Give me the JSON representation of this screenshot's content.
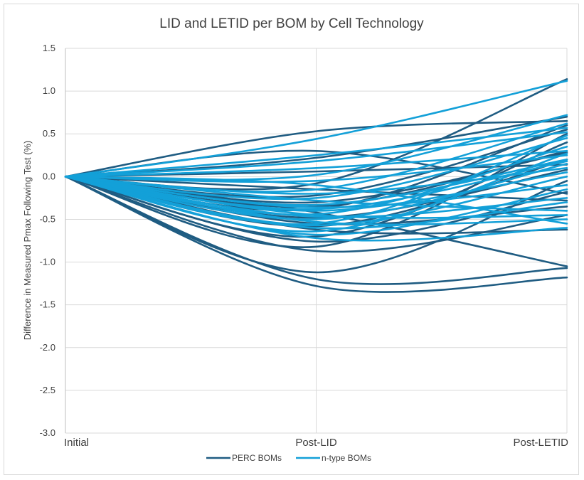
{
  "chart_data": {
    "type": "line",
    "title": "LID and LETID per BOM by Cell Technology",
    "xlabel": "",
    "ylabel": "Difference in Measured Pmax Following Test (%)",
    "categories": [
      "Initial",
      "Post-LID",
      "Post-LETID"
    ],
    "ylim": [
      -3.0,
      1.5
    ],
    "yticks": [
      "1.5",
      "1.0",
      "0.5",
      "0.0",
      "-0.5",
      "-1.0",
      "-1.5",
      "-2.0",
      "-2.5",
      "-3.0"
    ],
    "ytick_values": [
      1.5,
      1.0,
      0.5,
      0.0,
      -0.5,
      -1.0,
      -1.5,
      -2.0,
      -2.5,
      -3.0
    ],
    "grid": true,
    "smooth": true,
    "legend_position": "bottom",
    "colors": {
      "perc": "#1f5c82",
      "ntype": "#13a0d8",
      "grid": "#d9d9d9",
      "axis": "#bfbfbf"
    },
    "legend": [
      {
        "label": "PERC BOMs",
        "group": "perc"
      },
      {
        "label": "n-type BOMs",
        "group": "ntype"
      }
    ],
    "series": [
      {
        "group": "perc",
        "values": [
          0,
          0.53,
          0.65
        ]
      },
      {
        "group": "perc",
        "values": [
          0,
          0.3,
          -0.2
        ]
      },
      {
        "group": "perc",
        "values": [
          0,
          0.22,
          0.7
        ]
      },
      {
        "group": "perc",
        "values": [
          0,
          0.06,
          0.14
        ]
      },
      {
        "group": "perc",
        "values": [
          0,
          -0.08,
          1.14
        ]
      },
      {
        "group": "perc",
        "values": [
          0,
          -0.15,
          -0.28
        ]
      },
      {
        "group": "perc",
        "values": [
          0,
          -0.22,
          0.55
        ]
      },
      {
        "group": "perc",
        "values": [
          0,
          -0.3,
          0.28
        ]
      },
      {
        "group": "perc",
        "values": [
          0,
          -0.38,
          0.6
        ]
      },
      {
        "group": "perc",
        "values": [
          0,
          -0.42,
          -1.05
        ]
      },
      {
        "group": "perc",
        "values": [
          0,
          -0.48,
          0.08
        ]
      },
      {
        "group": "perc",
        "values": [
          0,
          -0.55,
          -0.35
        ]
      },
      {
        "group": "perc",
        "values": [
          0,
          -0.62,
          -0.62
        ]
      },
      {
        "group": "perc",
        "values": [
          0,
          -0.7,
          0.4
        ]
      },
      {
        "group": "perc",
        "values": [
          0,
          -0.76,
          -0.18
        ]
      },
      {
        "group": "perc",
        "values": [
          0,
          -0.82,
          0.5
        ]
      },
      {
        "group": "perc",
        "values": [
          0,
          -0.87,
          -0.45
        ]
      },
      {
        "group": "perc",
        "values": [
          0,
          -1.12,
          -0.05
        ]
      },
      {
        "group": "perc",
        "values": [
          0,
          -1.2,
          -1.07
        ]
      },
      {
        "group": "perc",
        "values": [
          0,
          -1.28,
          -1.18
        ]
      },
      {
        "group": "perc",
        "values": [
          0,
          -0.35,
          0.3
        ]
      },
      {
        "group": "perc",
        "values": [
          0,
          -0.58,
          0.2
        ]
      },
      {
        "group": "ntype",
        "values": [
          0,
          0.44,
          1.12
        ]
      },
      {
        "group": "ntype",
        "values": [
          0,
          0.25,
          0.57
        ]
      },
      {
        "group": "ntype",
        "values": [
          0,
          0.18,
          0.52
        ]
      },
      {
        "group": "ntype",
        "values": [
          0,
          0.1,
          0.3
        ]
      },
      {
        "group": "ntype",
        "values": [
          0,
          0.02,
          0.72
        ]
      },
      {
        "group": "ntype",
        "values": [
          0,
          -0.05,
          0.25
        ]
      },
      {
        "group": "ntype",
        "values": [
          0,
          -0.1,
          -0.55
        ]
      },
      {
        "group": "ntype",
        "values": [
          0,
          -0.15,
          0.62
        ]
      },
      {
        "group": "ntype",
        "values": [
          0,
          -0.2,
          0.1
        ]
      },
      {
        "group": "ntype",
        "values": [
          0,
          -0.25,
          0.45
        ]
      },
      {
        "group": "ntype",
        "values": [
          0,
          -0.28,
          -0.4
        ]
      },
      {
        "group": "ntype",
        "values": [
          0,
          -0.33,
          0.2
        ]
      },
      {
        "group": "ntype",
        "values": [
          0,
          -0.36,
          -0.1
        ]
      },
      {
        "group": "ntype",
        "values": [
          0,
          -0.4,
          0.05
        ]
      },
      {
        "group": "ntype",
        "values": [
          0,
          -0.44,
          0.35
        ]
      },
      {
        "group": "ntype",
        "values": [
          0,
          -0.47,
          -0.25
        ]
      },
      {
        "group": "ntype",
        "values": [
          0,
          -0.5,
          0.15
        ]
      },
      {
        "group": "ntype",
        "values": [
          0,
          -0.53,
          -0.5
        ]
      },
      {
        "group": "ntype",
        "values": [
          0,
          -0.57,
          0.0
        ]
      },
      {
        "group": "ntype",
        "values": [
          0,
          -0.6,
          -0.3
        ]
      },
      {
        "group": "ntype",
        "values": [
          0,
          -0.64,
          0.27
        ]
      },
      {
        "group": "ntype",
        "values": [
          0,
          -0.68,
          -0.15
        ]
      },
      {
        "group": "ntype",
        "values": [
          0,
          -0.72,
          -0.6
        ]
      },
      {
        "group": "ntype",
        "values": [
          0,
          -0.55,
          0.48
        ]
      },
      {
        "group": "ntype",
        "values": [
          0,
          -0.45,
          -0.45
        ]
      },
      {
        "group": "ntype",
        "values": [
          0,
          -0.38,
          0.18
        ]
      }
    ]
  }
}
